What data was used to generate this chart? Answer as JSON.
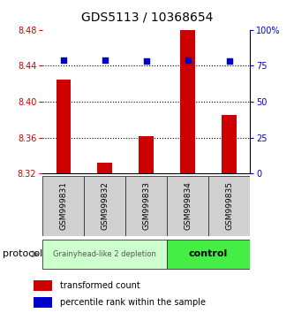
{
  "title": "GDS5113 / 10368654",
  "samples": [
    "GSM999831",
    "GSM999832",
    "GSM999833",
    "GSM999834",
    "GSM999835"
  ],
  "bar_values": [
    8.425,
    8.332,
    8.362,
    8.48,
    8.385
  ],
  "bar_baseline": 8.32,
  "percentile_right": [
    79,
    79,
    78,
    79,
    78
  ],
  "ylim_left": [
    8.32,
    8.48
  ],
  "ylim_right": [
    0,
    100
  ],
  "yticks_left": [
    8.32,
    8.36,
    8.4,
    8.44,
    8.48
  ],
  "yticks_right": [
    0,
    25,
    50,
    75,
    100
  ],
  "ytick_labels_right": [
    "0",
    "25",
    "50",
    "75",
    "100%"
  ],
  "bar_color": "#cc0000",
  "marker_color": "#0000cc",
  "left_tick_color": "#cc0000",
  "right_tick_color": "#0000cc",
  "group1_label": "Grainyhead-like 2 depletion",
  "group1_color": "#ccffcc",
  "group2_label": "control",
  "group2_color": "#44ee44",
  "protocol_label": "protocol",
  "legend_bar_label": "transformed count",
  "legend_marker_label": "percentile rank within the sample",
  "bar_width": 0.35,
  "title_fontsize": 10
}
